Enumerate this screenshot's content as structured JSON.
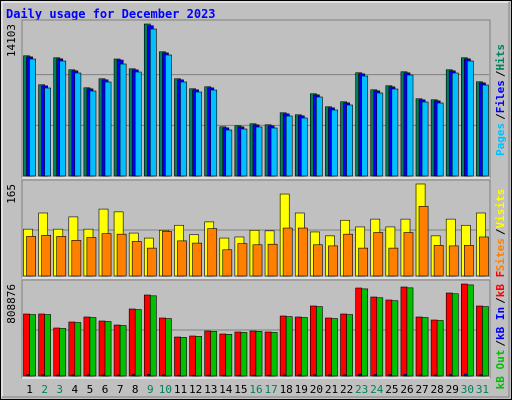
{
  "title": "Daily usage for December 2023",
  "categories": [
    "1",
    "2",
    "3",
    "4",
    "5",
    "6",
    "7",
    "8",
    "9",
    "10",
    "11",
    "12",
    "13",
    "14",
    "15",
    "16",
    "17",
    "18",
    "19",
    "20",
    "21",
    "22",
    "23",
    "24",
    "25",
    "26",
    "27",
    "28",
    "29",
    "30",
    "31"
  ],
  "weekday_color": "#000000",
  "weekend_color": "#00805c",
  "weekend": [
    false,
    true,
    true,
    false,
    false,
    false,
    false,
    false,
    true,
    true,
    false,
    false,
    false,
    false,
    false,
    true,
    true,
    false,
    false,
    false,
    false,
    false,
    true,
    true,
    false,
    false,
    false,
    false,
    false,
    true,
    true
  ],
  "separator": "/",
  "chart_data": [
    {
      "type": "bar",
      "ylim": [
        0,
        14103
      ],
      "yticks": [
        14103
      ],
      "grid_divisions": 3,
      "series": [
        {
          "name": "Hits",
          "color": "#00805c",
          "values": [
            11155,
            8465,
            10970,
            9856,
            8186,
            9021,
            10855,
            9949,
            14103,
            11526,
            9021,
            8094,
            8279,
            4568,
            4661,
            4846,
            4753,
            5867,
            5681,
            7630,
            6423,
            6887,
            9578,
            8001,
            8372,
            9671,
            7166,
            7073,
            9856,
            10970,
            8743
          ]
        },
        {
          "name": "Files",
          "color": "#0000ff",
          "values": [
            11055,
            8365,
            10870,
            9756,
            8086,
            8921,
            10755,
            9849,
            13939,
            11426,
            8921,
            7994,
            8179,
            4468,
            4561,
            4746,
            4653,
            5767,
            5581,
            7530,
            6323,
            6787,
            9478,
            7901,
            8272,
            9571,
            7066,
            6973,
            9756,
            10870,
            8643
          ]
        },
        {
          "name": "Pages",
          "color": "#00c0ff",
          "values": [
            10855,
            8165,
            10670,
            9556,
            7886,
            8721,
            10391,
            9649,
            13639,
            11226,
            8721,
            7794,
            7979,
            4268,
            4361,
            4546,
            4453,
            5567,
            5381,
            7330,
            6123,
            6587,
            9278,
            7701,
            8072,
            9371,
            6866,
            6773,
            9556,
            10670,
            8443
          ]
        }
      ]
    },
    {
      "type": "bar",
      "ylim": [
        0,
        165
      ],
      "yticks": [
        165
      ],
      "grid_divisions": 2,
      "series": [
        {
          "name": "Visits",
          "color": "#ffff00",
          "values": [
            84,
            113,
            84,
            106,
            84,
            120,
            115,
            77,
            68,
            82,
            91,
            74,
            97,
            68,
            70,
            82,
            81,
            147,
            113,
            79,
            72,
            100,
            88,
            102,
            88,
            102,
            165,
            72,
            102,
            91,
            113
          ]
        },
        {
          "name": "Sites",
          "color": "#ff8000",
          "values": [
            71,
            73,
            71,
            64,
            69,
            76,
            75,
            62,
            50,
            80,
            63,
            59,
            85,
            47,
            58,
            56,
            57,
            86,
            86,
            56,
            54,
            75,
            50,
            78,
            50,
            78,
            125,
            55,
            54,
            55,
            70
          ]
        }
      ]
    },
    {
      "type": "bar",
      "ylim": [
        0,
        808876
      ],
      "yticks": [
        808876
      ],
      "grid_divisions": 2,
      "series": [
        {
          "name": "kB F",
          "color": "#ff0000",
          "values": [
            545104,
            545104,
            422016,
            474768,
            518728,
            483560,
            448392,
            589064,
            712152,
            509936,
            342888,
            351680,
            395640,
            369264,
            386848,
            395640,
            386848,
            527520,
            518728,
            615440,
            509936,
            545104,
            773696,
            694568,
            668192,
            782488,
            518728,
            492352,
            729736,
            808876,
            615440
          ]
        },
        {
          "name": "kB In",
          "color": "#0000ff",
          "values": [
            12000,
            12000,
            9000,
            10000,
            11000,
            10000,
            9000,
            13000,
            15000,
            11000,
            7000,
            7000,
            8000,
            8000,
            8000,
            8000,
            8000,
            11000,
            11000,
            13000,
            11000,
            12000,
            16000,
            14000,
            14000,
            16000,
            11000,
            10000,
            15000,
            17000,
            13000
          ]
        },
        {
          "name": "kB Out",
          "color": "#00c000",
          "values": [
            540000,
            540000,
            418000,
            470000,
            514000,
            479000,
            444000,
            584000,
            705000,
            505000,
            339000,
            348000,
            392000,
            366000,
            383000,
            392000,
            383000,
            522000,
            514000,
            610000,
            505000,
            540000,
            766000,
            688000,
            662000,
            775000,
            514000,
            488000,
            723000,
            801000,
            610000
          ]
        }
      ]
    }
  ]
}
